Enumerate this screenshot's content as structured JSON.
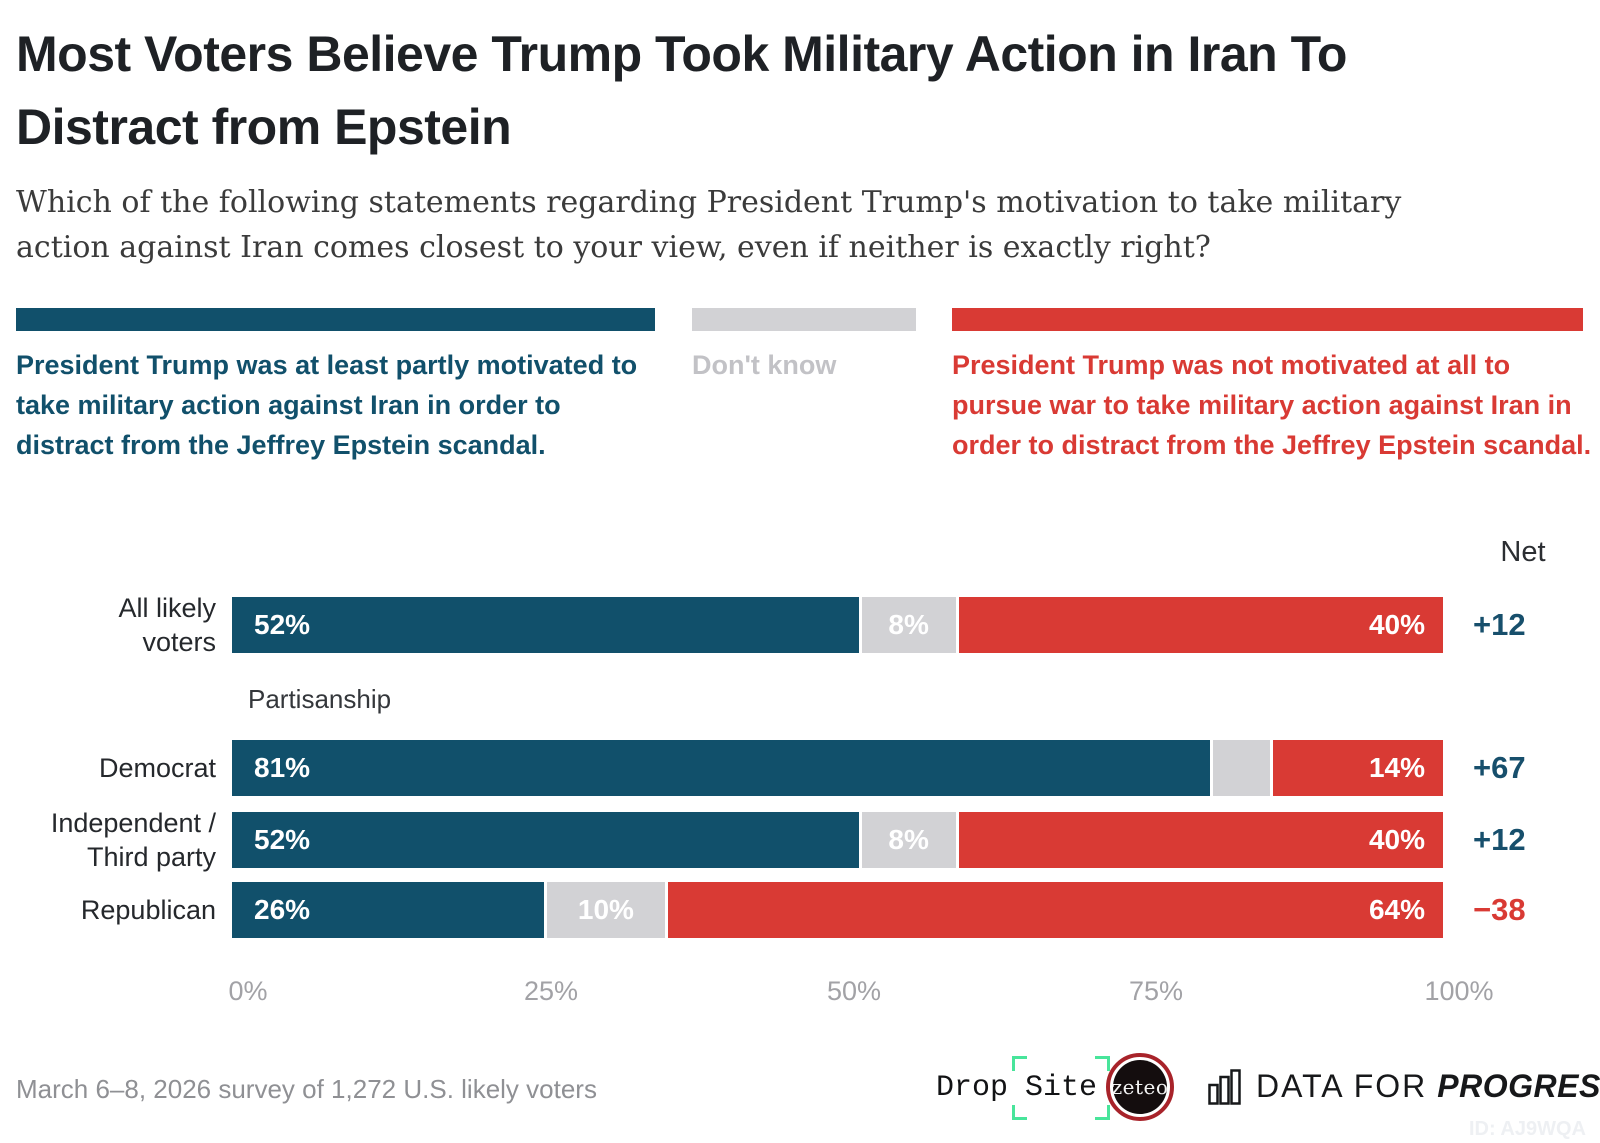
{
  "title": "Most Voters Believe Trump Took Military Action in Iran To Distract from Epstein",
  "subtitle": "Which of the following statements regarding President Trump's motivation to take military action against Iran comes closest to your view, even if neither is exactly right?",
  "colors": {
    "agree": "#11506B",
    "dont_know": "#D2D2D5",
    "disagree": "#D93A34",
    "net_positive": "#174F6C",
    "net_negative": "#D93A34"
  },
  "legend": {
    "agree_label": "President Trump was at least partly motivated to take military action against Iran in order to distract from the Jeffrey Epstein scandal.",
    "dont_know_label": "Don't know",
    "disagree_label": "President Trump was not motivated at all to pursue war to take military action against Iran in order to distract from the Jeffrey Epstein scandal."
  },
  "chart_data": {
    "type": "bar",
    "orientation": "horizontal",
    "stacked": true,
    "xlim": [
      0,
      100
    ],
    "x_ticks": [
      "0%",
      "25%",
      "50%",
      "75%",
      "100%"
    ],
    "net_header": "Net",
    "section_label": "Partisanship",
    "categories": [
      "All likely voters",
      "Democrat",
      "Independent / Third party",
      "Republican"
    ],
    "series": [
      {
        "name": "At least partly motivated (agree)",
        "values": [
          52,
          81,
          52,
          26
        ]
      },
      {
        "name": "Don't know",
        "values": [
          8,
          5,
          8,
          10
        ]
      },
      {
        "name": "Not motivated at all (disagree)",
        "values": [
          40,
          14,
          40,
          64
        ]
      }
    ],
    "net_values": [
      "+12",
      "+67",
      "+12",
      "−38"
    ],
    "rows": [
      {
        "label": "All likely\nvoters",
        "agree": 52,
        "agree_label": "52%",
        "dont_know": 8,
        "dont_know_label": "8%",
        "disagree": 40,
        "disagree_label": "40%",
        "net": "+12",
        "net_color": "#174F6C"
      },
      {
        "label": "Democrat",
        "agree": 81,
        "agree_label": "81%",
        "dont_know": 5,
        "dont_know_label": "",
        "disagree": 14,
        "disagree_label": "14%",
        "net": "+67",
        "net_color": "#174F6C"
      },
      {
        "label": "Independent /\nThird party",
        "agree": 52,
        "agree_label": "52%",
        "dont_know": 8,
        "dont_know_label": "8%",
        "disagree": 40,
        "disagree_label": "40%",
        "net": "+12",
        "net_color": "#174F6C"
      },
      {
        "label": "Republican",
        "agree": 26,
        "agree_label": "26%",
        "dont_know": 10,
        "dont_know_label": "10%",
        "disagree": 64,
        "disagree_label": "64%",
        "net": "−38",
        "net_color": "#D93A34"
      }
    ]
  },
  "footer": {
    "source": "March 6–8, 2026 survey of 1,272 U.S. likely voters",
    "chart_id": "ID: AJ9WQA",
    "logos": {
      "drop_site_prefix": "Drop",
      "drop_site_bracketed": "Site",
      "zeteo": "zeteo",
      "dfp_light": "DATA FOR",
      "dfp_bold": "PROGRESS"
    }
  }
}
